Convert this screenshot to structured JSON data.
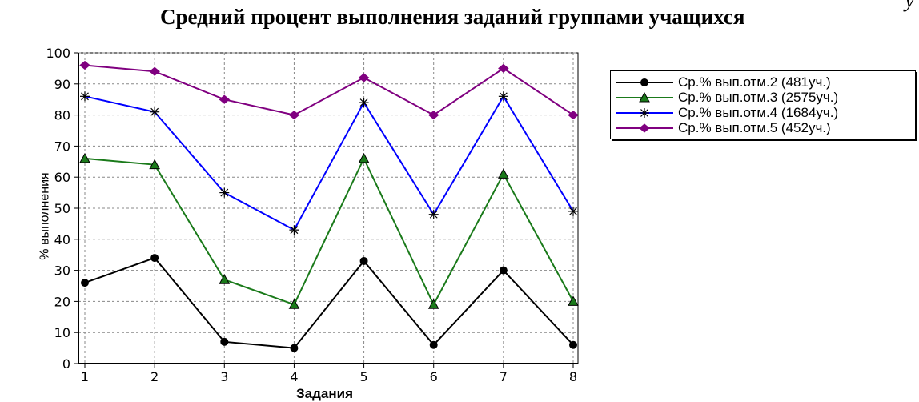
{
  "stray_mark": "у",
  "chart_data": {
    "type": "line",
    "title": "Средний процент выполнения заданий группами учащихся",
    "xlabel": "Задания",
    "ylabel": "% выполнения",
    "categories": [
      "1",
      "2",
      "3",
      "4",
      "5",
      "6",
      "7",
      "8"
    ],
    "ylim": [
      0,
      100
    ],
    "yticks": [
      0,
      10,
      20,
      30,
      40,
      50,
      60,
      70,
      80,
      90,
      100
    ],
    "grid": true,
    "legend_position": "right",
    "series": [
      {
        "name": "Ср.% вып.отм.2 (481уч.)",
        "color": "#000000",
        "marker": "circle",
        "values": [
          26,
          34,
          7,
          5,
          33,
          6,
          30,
          6
        ]
      },
      {
        "name": "Ср.% вып.отм.3 (2575уч.)",
        "color": "#1a7a1a",
        "marker": "triangle",
        "values": [
          66,
          64,
          27,
          19,
          66,
          19,
          61,
          20
        ]
      },
      {
        "name": "Ср.% вып.отм.4 (1684уч.)",
        "color": "#0000ff",
        "marker": "asterisk",
        "values": [
          86,
          81,
          55,
          43,
          84,
          48,
          86,
          49
        ]
      },
      {
        "name": "Ср.% вып.отм.5 (452уч.)",
        "color": "#800080",
        "marker": "diamond",
        "values": [
          96,
          94,
          85,
          80,
          92,
          80,
          95,
          80
        ]
      }
    ]
  }
}
